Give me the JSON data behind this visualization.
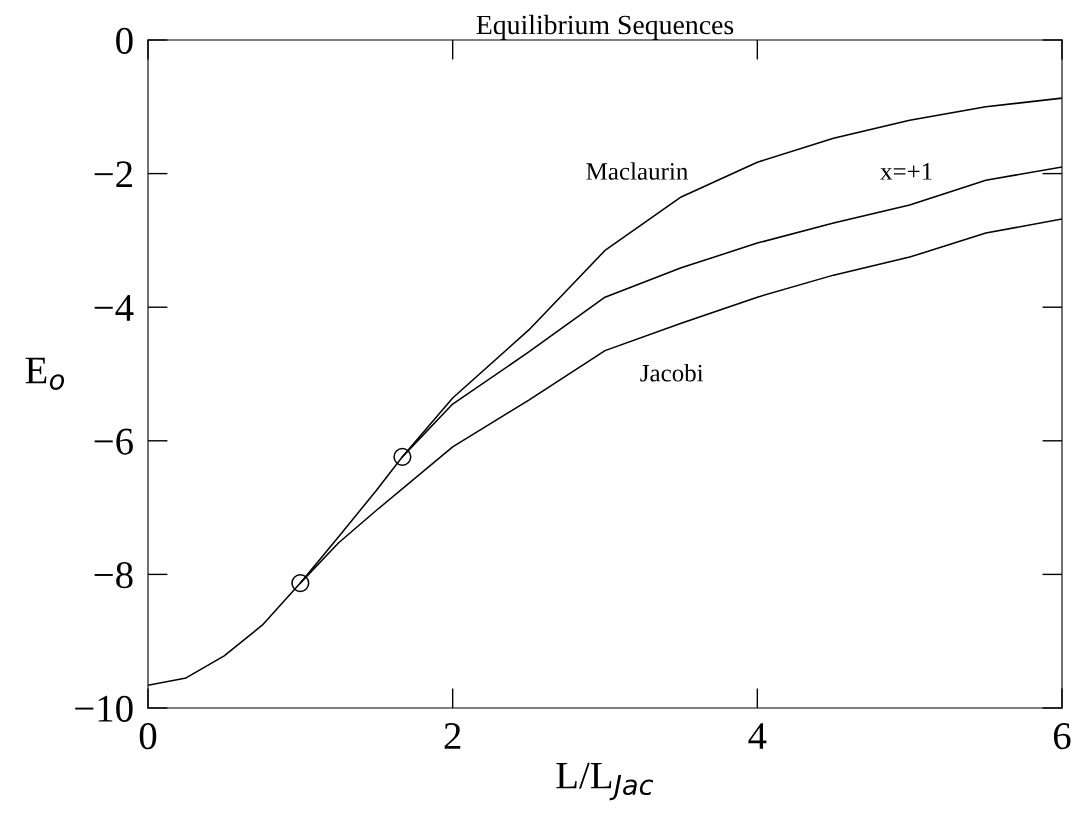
{
  "chart_data": {
    "type": "line",
    "title": "Equilibrium Sequences",
    "xlabel": "L/L$_{Jac}$",
    "ylabel": "E$_{o}$",
    "xlim": [
      0,
      6
    ],
    "ylim": [
      -10,
      0
    ],
    "xticks": [
      0,
      2,
      4,
      6
    ],
    "yticks": [
      -10,
      -8,
      -6,
      -4,
      -2,
      0
    ],
    "grid": false,
    "legend": false,
    "series": [
      {
        "color": "#000000",
        "x": [
          0,
          0.25,
          0.5,
          0.75,
          1,
          1.25,
          1.5,
          1.67,
          2,
          2.5,
          3,
          3.5,
          4,
          4.5,
          5,
          5.5,
          6
        ],
        "values": [
          -9.66,
          -9.55,
          -9.22,
          -8.76,
          -8.13,
          -7.44,
          -6.74,
          -6.24,
          -5.36,
          -4.34,
          -3.15,
          -2.35,
          -1.83,
          -1.47,
          -1.2,
          -1.0,
          -0.87
        ]
      },
      {
        "color": "#000000",
        "x": [
          1.67,
          2,
          2.5,
          3,
          3.5,
          4,
          4.5,
          5,
          5.5,
          6
        ],
        "values": [
          -6.24,
          -5.45,
          -4.67,
          -3.85,
          -3.41,
          -3.04,
          -2.74,
          -2.47,
          -2.1,
          -1.9
        ]
      },
      {
        "color": "#000000",
        "x": [
          1,
          1.25,
          1.5,
          2,
          2.5,
          3,
          3.5,
          4,
          4.5,
          5,
          5.5,
          6
        ],
        "values": [
          -8.13,
          -7.53,
          -7.04,
          -6.09,
          -5.39,
          -4.65,
          -4.24,
          -3.85,
          -3.52,
          -3.25,
          -2.89,
          -2.68
        ]
      },
      {
        "type": "scatter",
        "marker": "circle",
        "color": "#000000",
        "x": [
          1,
          1.67
        ],
        "values": [
          -8.13,
          -6.24
        ]
      }
    ],
    "annotations": [
      "Maclaurin",
      "x=+1",
      "Jacobi"
    ]
  }
}
